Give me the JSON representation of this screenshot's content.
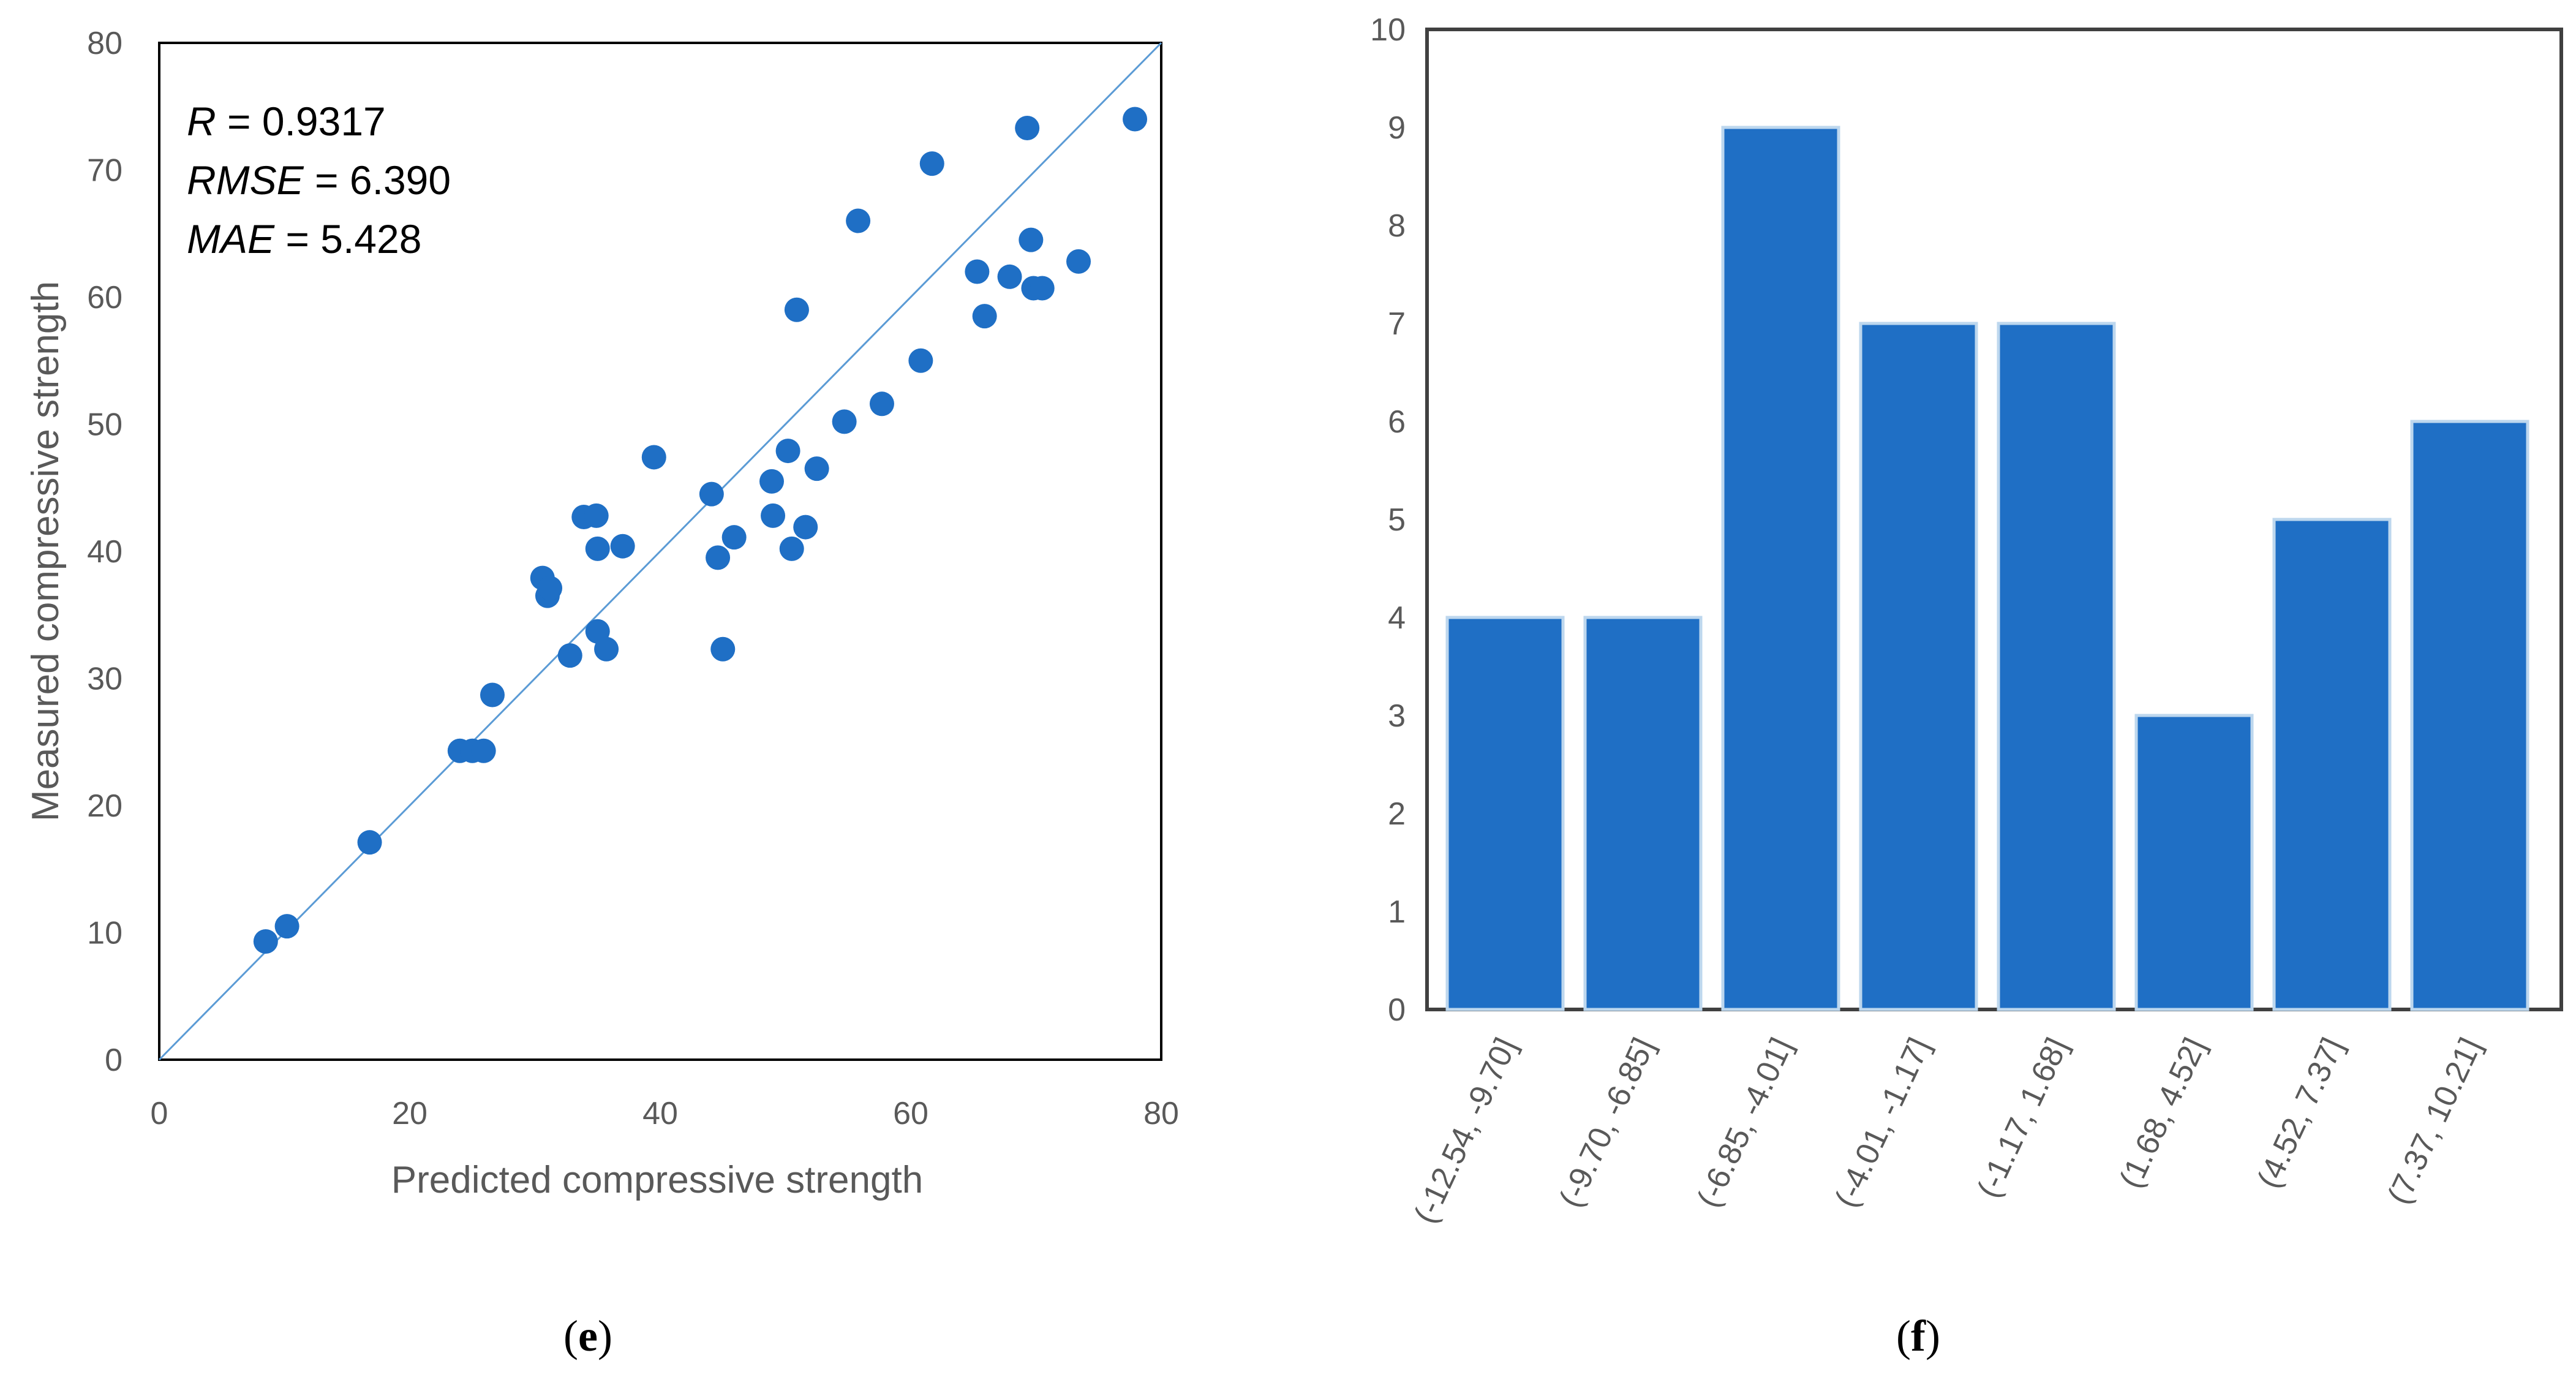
{
  "chart_data": [
    {
      "type": "scatter",
      "panel": "e",
      "title": "",
      "xlabel": "Predicted compressive strength",
      "ylabel": "Measured compressive strength",
      "xlim": [
        0,
        80
      ],
      "ylim": [
        0,
        80
      ],
      "xticks": [
        0,
        20,
        40,
        60,
        80
      ],
      "yticks": [
        0,
        10,
        20,
        30,
        40,
        50,
        60,
        70,
        80
      ],
      "reference_line": {
        "from": [
          0,
          0
        ],
        "to": [
          80,
          80
        ],
        "label": ""
      },
      "stats": [
        {
          "key": "R",
          "value": "0.9317"
        },
        {
          "key": "RMSE",
          "value": "6.390"
        },
        {
          "key": "MAE",
          "value": "5.428"
        }
      ],
      "points": [
        [
          8.5,
          9.3
        ],
        [
          10.2,
          10.5
        ],
        [
          16.8,
          17.1
        ],
        [
          24.0,
          24.3
        ],
        [
          25.0,
          24.3
        ],
        [
          25.9,
          24.3
        ],
        [
          26.6,
          28.7
        ],
        [
          30.6,
          37.9
        ],
        [
          31.0,
          36.5
        ],
        [
          31.2,
          37.1
        ],
        [
          32.8,
          31.8
        ],
        [
          33.9,
          42.7
        ],
        [
          34.9,
          42.8
        ],
        [
          35.0,
          33.7
        ],
        [
          35.0,
          40.2
        ],
        [
          35.7,
          32.3
        ],
        [
          37.0,
          40.4
        ],
        [
          39.5,
          47.4
        ],
        [
          44.1,
          44.5
        ],
        [
          44.6,
          39.5
        ],
        [
          45.0,
          32.3
        ],
        [
          45.9,
          41.1
        ],
        [
          48.9,
          45.5
        ],
        [
          49.0,
          42.8
        ],
        [
          50.2,
          47.9
        ],
        [
          50.5,
          40.2
        ],
        [
          50.9,
          59.0
        ],
        [
          51.6,
          41.9
        ],
        [
          52.5,
          46.5
        ],
        [
          54.7,
          50.2
        ],
        [
          55.8,
          66.0
        ],
        [
          57.7,
          51.6
        ],
        [
          60.8,
          55.0
        ],
        [
          61.7,
          70.5
        ],
        [
          65.3,
          62.0
        ],
        [
          65.9,
          58.5
        ],
        [
          67.9,
          61.6
        ],
        [
          69.3,
          73.3
        ],
        [
          69.6,
          64.5
        ],
        [
          69.8,
          60.7
        ],
        [
          70.5,
          60.7
        ],
        [
          73.4,
          62.8
        ],
        [
          77.9,
          74.0
        ]
      ],
      "marker_color": "#1f6fc5",
      "line_color": "#5b9bd5",
      "grid": false
    },
    {
      "type": "bar",
      "panel": "f",
      "title": "",
      "xlabel": "",
      "ylabel": "",
      "categories": [
        "(-12.54, -9.70]",
        "(-9.70, -6.85]",
        "(-6.85, -4.01]",
        "(-4.01, -1.17]",
        "(-1.17, 1.68]",
        "(1.68, 4.52]",
        "(4.52, 7.37]",
        "(7.37, 10.21]"
      ],
      "values": [
        4,
        4,
        9,
        7,
        7,
        3,
        5,
        6
      ],
      "ylim": [
        0,
        10
      ],
      "yticks": [
        0,
        1,
        2,
        3,
        4,
        5,
        6,
        7,
        8,
        9,
        10
      ],
      "bar_color": "#1f6fc5",
      "grid": false
    }
  ],
  "panel_labels": [
    {
      "open": "(",
      "letter": "e",
      "close": ")"
    },
    {
      "open": "(",
      "letter": "f",
      "close": ")"
    }
  ]
}
